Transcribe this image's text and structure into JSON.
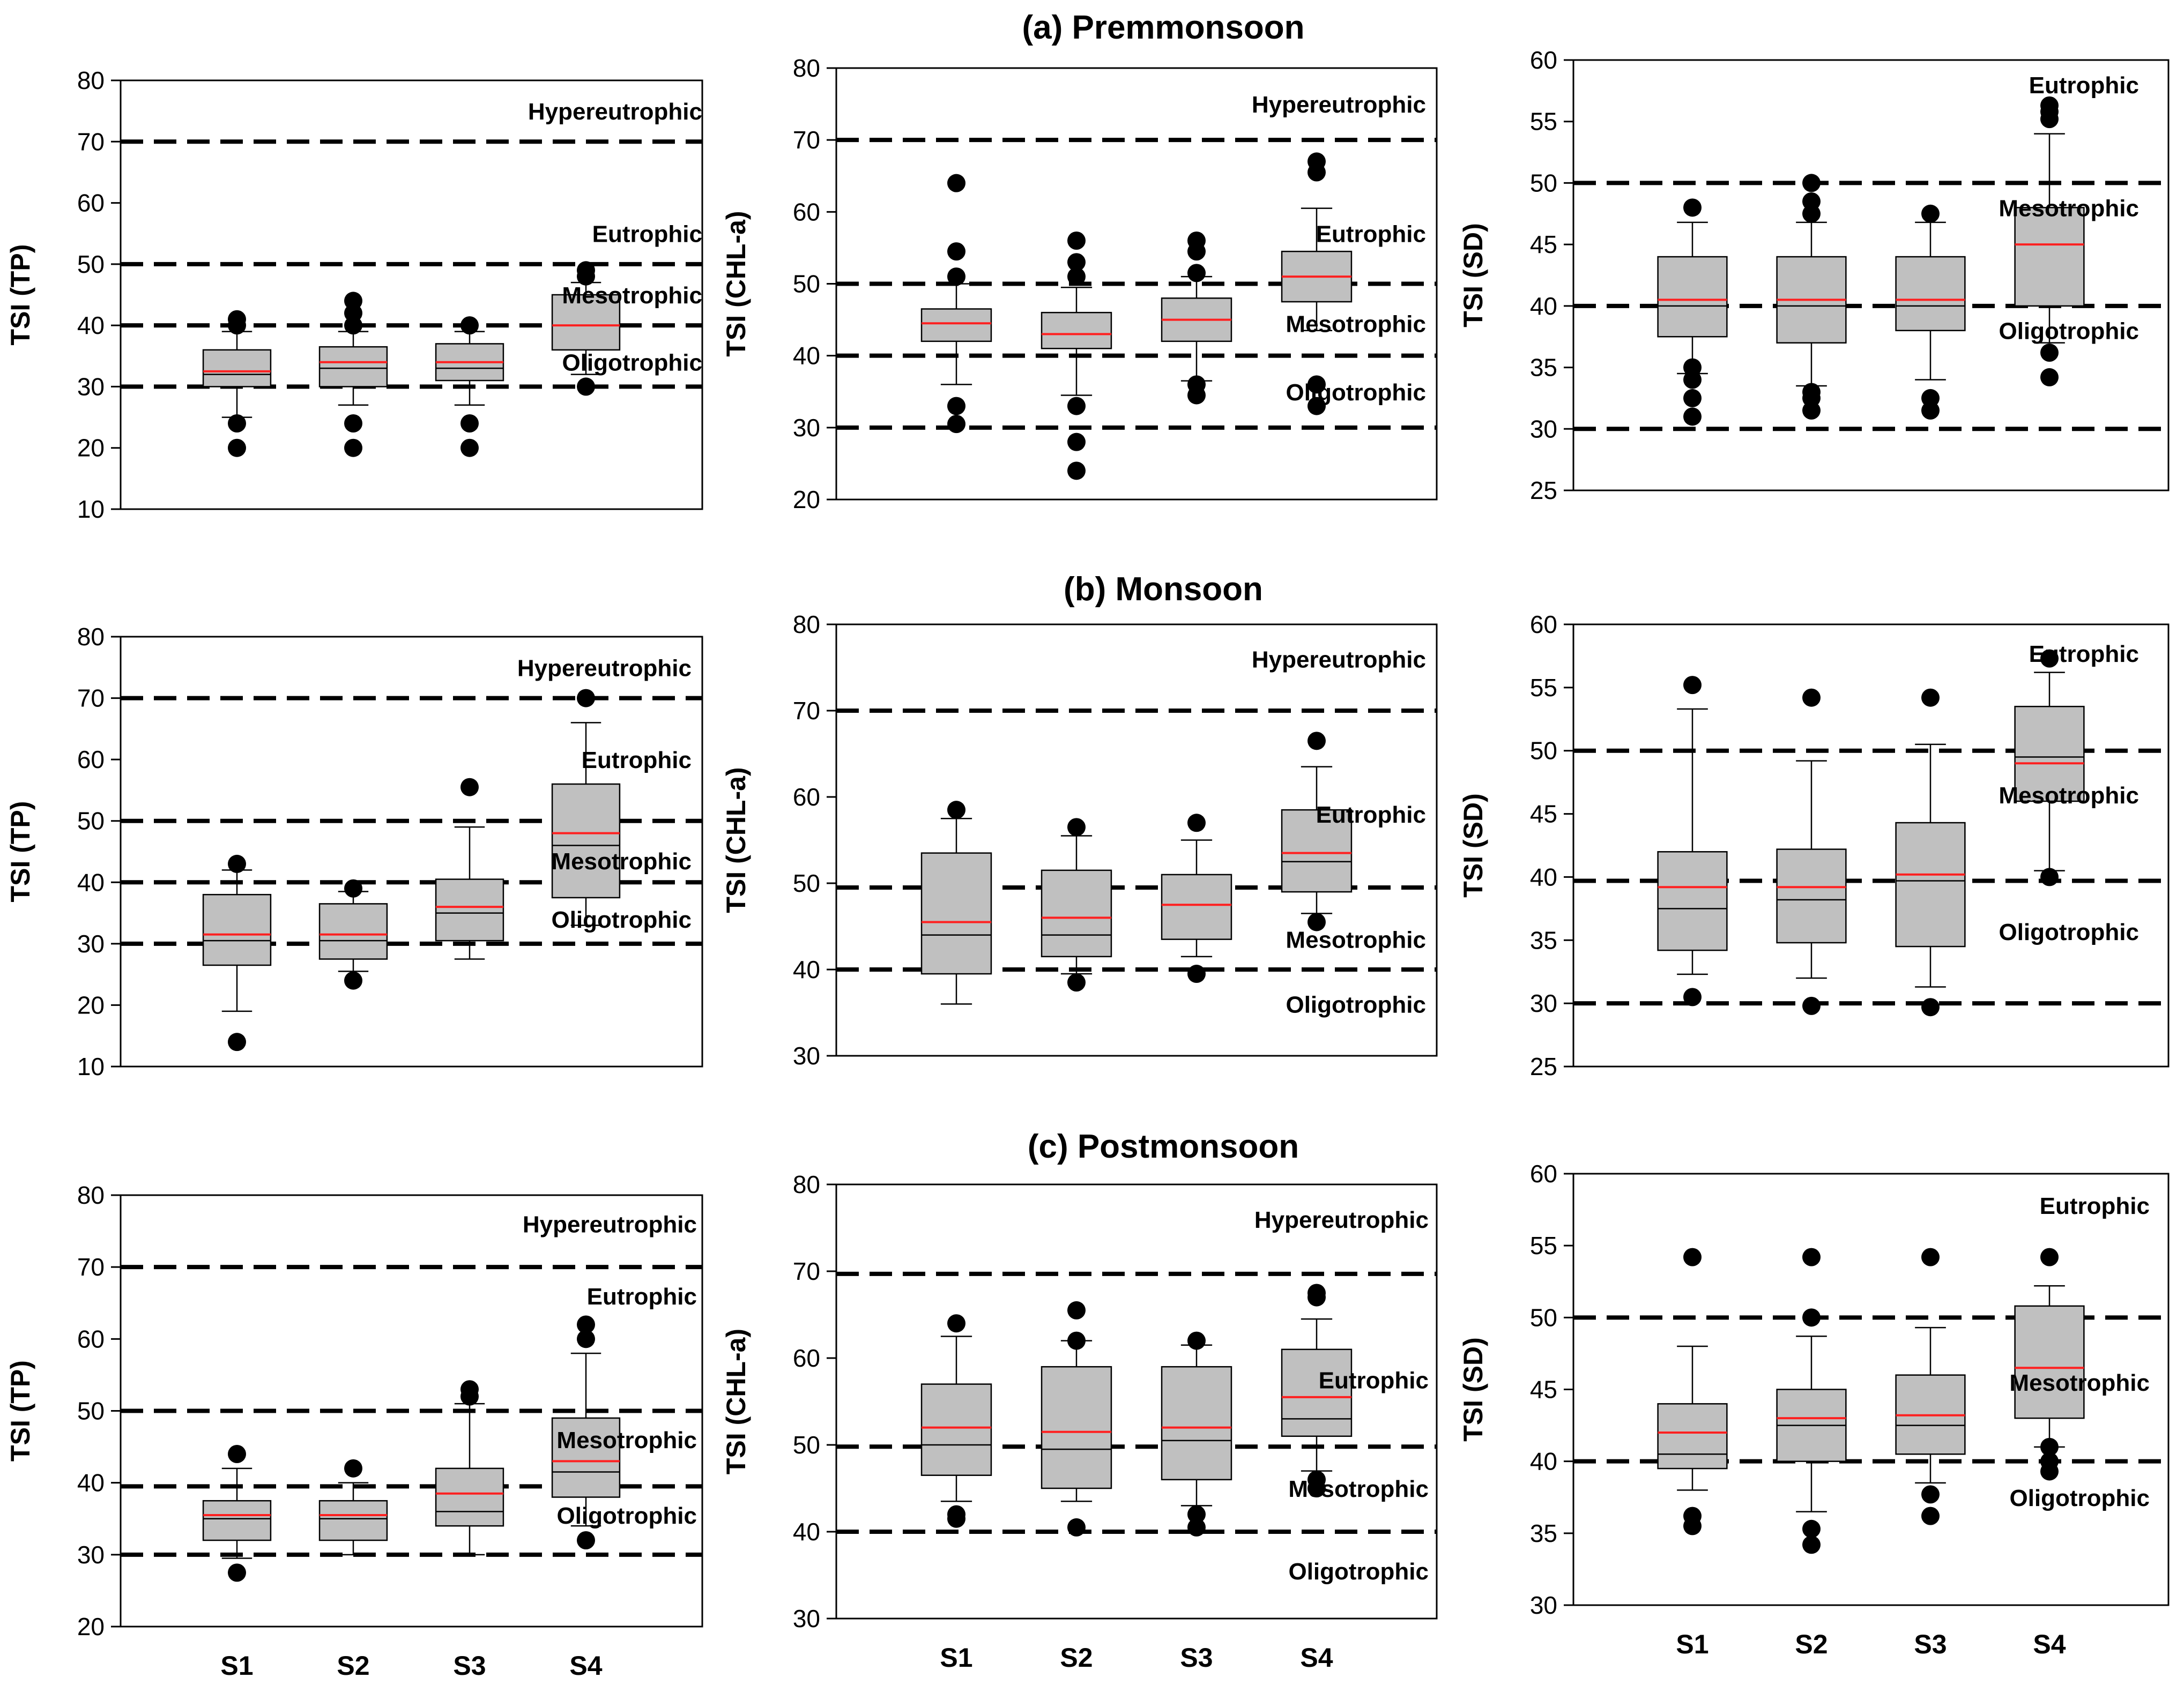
{
  "rows": [
    {
      "title": "(a) Premmonsoon",
      "show_categories": false
    },
    {
      "title": "(b) Monsoon",
      "show_categories": false
    },
    {
      "title": "(c) Postmonsoon",
      "show_categories": true
    }
  ],
  "chart_data": [
    {
      "type": "box",
      "title": "(a) Premmonsoon",
      "ylabel": "TSI (TP)",
      "ylim": [
        10,
        80
      ],
      "ticks": [
        10,
        20,
        30,
        40,
        50,
        60,
        70,
        80
      ],
      "categories": [
        "S1",
        "S2",
        "S3",
        "S4"
      ],
      "thresholds": [
        30,
        40,
        50,
        70
      ],
      "zones": [
        {
          "label": "Hypereutrophic",
          "y": 75
        },
        {
          "label": "Eutrophic",
          "y": 55
        },
        {
          "label": "Mesotrophic",
          "y": 45
        },
        {
          "label": "Oligotrophic",
          "y": 34
        }
      ],
      "boxes": [
        {
          "whisker_low": 25,
          "q1": 30,
          "median": 32,
          "mean": 32.5,
          "q3": 36,
          "whisker_high": 39,
          "outliers": [
            20,
            24,
            40,
            41
          ]
        },
        {
          "whisker_low": 27,
          "q1": 30,
          "median": 33,
          "mean": 34,
          "q3": 36.5,
          "whisker_high": 39,
          "outliers": [
            20,
            24,
            40,
            42,
            44
          ]
        },
        {
          "whisker_low": 27,
          "q1": 31,
          "median": 33,
          "mean": 34,
          "q3": 37,
          "whisker_high": 39,
          "outliers": [
            20,
            24,
            40
          ]
        },
        {
          "whisker_low": 32,
          "q1": 36,
          "median": 40,
          "mean": 40,
          "q3": 45,
          "whisker_high": 47,
          "outliers": [
            30,
            48,
            49
          ]
        }
      ]
    },
    {
      "type": "box",
      "title": "(a) Premmonsoon",
      "ylabel": "TSI (CHL-a)",
      "ylim": [
        20,
        80
      ],
      "ticks": [
        20,
        30,
        40,
        50,
        60,
        70,
        80
      ],
      "categories": [
        "S1",
        "S2",
        "S3",
        "S4"
      ],
      "thresholds": [
        30,
        40,
        50,
        70
      ],
      "zones": [
        {
          "label": "Hypereutrophic",
          "y": 75
        },
        {
          "label": "Eutrophic",
          "y": 57
        },
        {
          "label": "Mesotrophic",
          "y": 44.5
        },
        {
          "label": "Oligotrophic",
          "y": 35
        }
      ],
      "boxes": [
        {
          "whisker_low": 36,
          "q1": 42,
          "median": 44.5,
          "mean": 44.5,
          "q3": 46.5,
          "whisker_high": 50,
          "outliers": [
            30.5,
            33,
            51,
            54.5,
            64
          ]
        },
        {
          "whisker_low": 34.5,
          "q1": 41,
          "median": 43,
          "mean": 43,
          "q3": 46,
          "whisker_high": 49.5,
          "outliers": [
            24,
            28,
            33,
            51,
            53,
            56
          ]
        },
        {
          "whisker_low": 36.5,
          "q1": 42,
          "median": 45,
          "mean": 45,
          "q3": 48,
          "whisker_high": 51,
          "outliers": [
            34.5,
            36,
            51.5,
            54.5,
            56
          ]
        },
        {
          "whisker_low": 43.5,
          "q1": 47.5,
          "median": 51,
          "mean": 51,
          "q3": 54.5,
          "whisker_high": 60.5,
          "outliers": [
            33,
            36,
            65.5,
            67
          ]
        }
      ]
    },
    {
      "type": "box",
      "title": "(a) Premmonsoon",
      "ylabel": "TSI (SD)",
      "ylim": [
        25,
        60
      ],
      "ticks": [
        25,
        30,
        35,
        40,
        45,
        50,
        55,
        60
      ],
      "categories": [
        "S1",
        "S2",
        "S3",
        "S4"
      ],
      "thresholds": [
        30,
        40,
        50
      ],
      "zones": [
        {
          "label": "Eutrophic",
          "y": 58
        },
        {
          "label": "Mesotrophic",
          "y": 48
        },
        {
          "label": "Oligotrophic",
          "y": 38
        }
      ],
      "boxes": [
        {
          "whisker_low": 34.5,
          "q1": 37.5,
          "median": 40,
          "mean": 40.5,
          "q3": 44,
          "whisker_high": 46.8,
          "outliers": [
            31,
            32.5,
            34,
            35,
            48
          ]
        },
        {
          "whisker_low": 33.5,
          "q1": 37,
          "median": 40,
          "mean": 40.5,
          "q3": 44,
          "whisker_high": 46.8,
          "outliers": [
            31.5,
            32.5,
            33,
            47.5,
            48.5,
            50
          ]
        },
        {
          "whisker_low": 34,
          "q1": 38,
          "median": 40,
          "mean": 40.5,
          "q3": 44,
          "whisker_high": 46.8,
          "outliers": [
            31.5,
            32.5,
            47.5
          ]
        },
        {
          "whisker_low": 37,
          "q1": 40,
          "median": 45,
          "mean": 45,
          "q3": 48,
          "whisker_high": 54,
          "outliers": [
            34.2,
            36.2,
            55.2,
            55.8,
            56.3
          ]
        }
      ]
    },
    {
      "type": "box",
      "title": "(b) Monsoon",
      "ylabel": "TSI (TP)",
      "ylim": [
        10,
        80
      ],
      "ticks": [
        10,
        20,
        30,
        40,
        50,
        60,
        70,
        80
      ],
      "categories": [
        "S1",
        "S2",
        "S3",
        "S4"
      ],
      "thresholds": [
        30,
        40,
        50,
        70
      ],
      "zones": [
        {
          "label": "Hypereutrophic",
          "y": 75
        },
        {
          "label": "Eutrophic",
          "y": 60
        },
        {
          "label": "Mesotrophic",
          "y": 43.5
        },
        {
          "label": "Oligotrophic",
          "y": 34
        }
      ],
      "boxes": [
        {
          "whisker_low": 19,
          "q1": 26.5,
          "median": 30.5,
          "mean": 31.5,
          "q3": 38,
          "whisker_high": 42,
          "outliers": [
            14,
            43
          ]
        },
        {
          "whisker_low": 25.5,
          "q1": 27.5,
          "median": 30.5,
          "mean": 31.5,
          "q3": 36.5,
          "whisker_high": 38.5,
          "outliers": [
            24,
            39
          ]
        },
        {
          "whisker_low": 27.5,
          "q1": 30.5,
          "median": 35,
          "mean": 36,
          "q3": 40.5,
          "whisker_high": 49,
          "outliers": [
            55.5
          ]
        },
        {
          "whisker_low": 33,
          "q1": 37.5,
          "median": 46,
          "mean": 48,
          "q3": 56,
          "whisker_high": 66,
          "outliers": [
            70
          ]
        }
      ]
    },
    {
      "type": "box",
      "title": "(b) Monsoon",
      "ylabel": "TSI (CHL-a)",
      "ylim": [
        30,
        80
      ],
      "ticks": [
        30,
        40,
        50,
        60,
        70,
        80
      ],
      "categories": [
        "S1",
        "S2",
        "S3",
        "S4"
      ],
      "thresholds": [
        40,
        49.5,
        70
      ],
      "zones": [
        {
          "label": "Hypereutrophic",
          "y": 76
        },
        {
          "label": "Eutrophic",
          "y": 58
        },
        {
          "label": "Mesotrophic",
          "y": 43.5
        },
        {
          "label": "Oligotrophic",
          "y": 36
        }
      ],
      "boxes": [
        {
          "whisker_low": 36,
          "q1": 39.5,
          "median": 44,
          "mean": 45.5,
          "q3": 53.5,
          "whisker_high": 57.5,
          "outliers": [
            58.5
          ]
        },
        {
          "whisker_low": 39.5,
          "q1": 41.5,
          "median": 44,
          "mean": 46,
          "q3": 51.5,
          "whisker_high": 55.5,
          "outliers": [
            38.5,
            56.5
          ]
        },
        {
          "whisker_low": 41.5,
          "q1": 43.5,
          "median": 47.5,
          "mean": 47.5,
          "q3": 51,
          "whisker_high": 55,
          "outliers": [
            39.5,
            57
          ]
        },
        {
          "whisker_low": 46.5,
          "q1": 49,
          "median": 52.5,
          "mean": 53.5,
          "q3": 58.5,
          "whisker_high": 63.5,
          "outliers": [
            45.5,
            66.5
          ]
        }
      ]
    },
    {
      "type": "box",
      "title": "(b) Monsoon",
      "ylabel": "TSI (SD)",
      "ylim": [
        25,
        60
      ],
      "ticks": [
        25,
        30,
        35,
        40,
        45,
        50,
        55,
        60
      ],
      "categories": [
        "S1",
        "S2",
        "S3",
        "S4"
      ],
      "thresholds": [
        30,
        39.7,
        50
      ],
      "zones": [
        {
          "label": "Eutrophic",
          "y": 57.7
        },
        {
          "label": "Mesotrophic",
          "y": 46.5
        },
        {
          "label": "Oligotrophic",
          "y": 35.7
        }
      ],
      "boxes": [
        {
          "whisker_low": 32.3,
          "q1": 34.2,
          "median": 37.5,
          "mean": 39.2,
          "q3": 42,
          "whisker_high": 53.3,
          "outliers": [
            30.5,
            55.2
          ]
        },
        {
          "whisker_low": 32,
          "q1": 34.8,
          "median": 38.2,
          "mean": 39.2,
          "q3": 42.2,
          "whisker_high": 49.2,
          "outliers": [
            29.8,
            54.2
          ]
        },
        {
          "whisker_low": 31.3,
          "q1": 34.5,
          "median": 39.7,
          "mean": 40.2,
          "q3": 44.3,
          "whisker_high": 50.5,
          "outliers": [
            29.7,
            54.2
          ]
        },
        {
          "whisker_low": 40.5,
          "q1": 46,
          "median": 49.5,
          "mean": 49,
          "q3": 53.5,
          "whisker_high": 56.2,
          "outliers": [
            40,
            57.3
          ]
        }
      ]
    },
    {
      "type": "box",
      "title": "(c) Postmonsoon",
      "ylabel": "TSI (TP)",
      "ylim": [
        20,
        80
      ],
      "ticks": [
        20,
        30,
        40,
        50,
        60,
        70,
        80
      ],
      "categories": [
        "S1",
        "S2",
        "S3",
        "S4"
      ],
      "thresholds": [
        30,
        39.5,
        50,
        70
      ],
      "zones": [
        {
          "label": "Hypereutrophic",
          "y": 76
        },
        {
          "label": "Eutrophic",
          "y": 66
        },
        {
          "label": "Mesotrophic",
          "y": 46
        },
        {
          "label": "Oligotrophic",
          "y": 35.5
        }
      ],
      "boxes": [
        {
          "whisker_low": 29.5,
          "q1": 32,
          "median": 35,
          "mean": 35.5,
          "q3": 37.5,
          "whisker_high": 42,
          "outliers": [
            27.5,
            44
          ]
        },
        {
          "whisker_low": 30,
          "q1": 32,
          "median": 35,
          "mean": 35.5,
          "q3": 37.5,
          "whisker_high": 40,
          "outliers": [
            42
          ]
        },
        {
          "whisker_low": 30,
          "q1": 34,
          "median": 36,
          "mean": 38.5,
          "q3": 42,
          "whisker_high": 51,
          "outliers": [
            52,
            53
          ]
        },
        {
          "whisker_low": 34,
          "q1": 38,
          "median": 41.5,
          "mean": 43,
          "q3": 49,
          "whisker_high": 58,
          "outliers": [
            32,
            60,
            62
          ]
        }
      ]
    },
    {
      "type": "box",
      "title": "(c) Postmonsoon",
      "ylabel": "TSI (CHL-a)",
      "ylim": [
        30,
        80
      ],
      "ticks": [
        30,
        40,
        50,
        60,
        70,
        80
      ],
      "categories": [
        "S1",
        "S2",
        "S3",
        "S4"
      ],
      "thresholds": [
        40,
        49.8,
        69.7
      ],
      "zones": [
        {
          "label": "Hypereutrophic",
          "y": 76
        },
        {
          "label": "Eutrophic",
          "y": 57.5
        },
        {
          "label": "Mesotrophic",
          "y": 45
        },
        {
          "label": "Oligotrophic",
          "y": 35.5
        }
      ],
      "boxes": [
        {
          "whisker_low": 43.5,
          "q1": 46.5,
          "median": 50,
          "mean": 52,
          "q3": 57,
          "whisker_high": 62.5,
          "outliers": [
            41.5,
            42,
            64
          ]
        },
        {
          "whisker_low": 43.5,
          "q1": 45,
          "median": 49.5,
          "mean": 51.5,
          "q3": 59,
          "whisker_high": 62,
          "outliers": [
            40.5,
            62,
            65.5
          ]
        },
        {
          "whisker_low": 43,
          "q1": 46,
          "median": 50.5,
          "mean": 52,
          "q3": 59,
          "whisker_high": 61.5,
          "outliers": [
            40.5,
            42,
            62
          ]
        },
        {
          "whisker_low": 47,
          "q1": 51,
          "median": 53,
          "mean": 55.5,
          "q3": 61,
          "whisker_high": 64.5,
          "outliers": [
            45,
            46,
            67,
            67.5
          ]
        }
      ]
    },
    {
      "type": "box",
      "title": "(c) Postmonsoon",
      "ylabel": "TSI (SD)",
      "ylim": [
        30,
        60
      ],
      "ticks": [
        30,
        35,
        40,
        45,
        50,
        55,
        60
      ],
      "categories": [
        "S1",
        "S2",
        "S3",
        "S4"
      ],
      "thresholds": [
        40,
        50
      ],
      "zones": [
        {
          "label": "Eutrophic",
          "y": 57.8
        },
        {
          "label": "Mesotrophic",
          "y": 45.5
        },
        {
          "label": "Oligotrophic",
          "y": 37.5
        }
      ],
      "boxes": [
        {
          "whisker_low": 38,
          "q1": 39.5,
          "median": 40.5,
          "mean": 42,
          "q3": 44,
          "whisker_high": 48,
          "outliers": [
            35.5,
            36.2,
            54.2
          ]
        },
        {
          "whisker_low": 36.5,
          "q1": 40,
          "median": 42.5,
          "mean": 43,
          "q3": 45,
          "whisker_high": 48.7,
          "outliers": [
            34.2,
            35.3,
            50,
            54.2
          ]
        },
        {
          "whisker_low": 38.5,
          "q1": 40.5,
          "median": 42.5,
          "mean": 43.2,
          "q3": 46,
          "whisker_high": 49.3,
          "outliers": [
            36.2,
            37.7,
            54.2
          ]
        },
        {
          "whisker_low": 41,
          "q1": 43,
          "median": 46.5,
          "mean": 46.5,
          "q3": 50.8,
          "whisker_high": 52.2,
          "outliers": [
            39.3,
            40,
            41,
            54.2
          ]
        }
      ]
    }
  ]
}
